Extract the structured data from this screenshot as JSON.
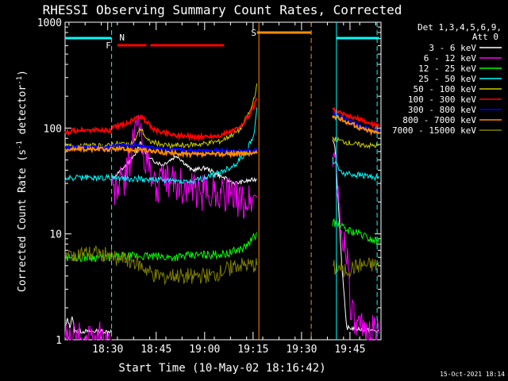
{
  "chart_data": {
    "type": "line",
    "title": "RHESSI Observing Summary Count Rates, Corrected",
    "xlabel": "Start Time (10-May-02 18:16:42)",
    "ylabel": "Corrected Count Rate (s",
    "ylabel_sup1": "-1",
    "ylabel_mid": " detector",
    "ylabel_sup2": "-1",
    "ylabel_end": ")",
    "yscale": "log",
    "ylim": [
      1,
      1000
    ],
    "xlim_minutes": [
      18.28,
      19.91
    ],
    "x_ticks": [
      "18:30",
      "18:45",
      "19:00",
      "19:15",
      "19:30",
      "19:45"
    ],
    "y_ticks": [
      "1",
      "10",
      "100",
      "1000"
    ],
    "legend_header": [
      "Det 1,3,4,5,6,9,",
      "Att 0"
    ],
    "legend_position": "right",
    "footer_date": "15-Oct-2021 18:14",
    "series": [
      {
        "name": "3 - 6 keV",
        "color": "#ffffff",
        "segA": [
          [
            0.0,
            1.2
          ],
          [
            0.05,
            1.6
          ],
          [
            0.1,
            1.3
          ],
          [
            0.15,
            1.7
          ],
          [
            0.2,
            1.2
          ]
        ],
        "segB": [
          [
            0.0,
            32
          ],
          [
            0.08,
            42
          ],
          [
            0.16,
            55
          ],
          [
            0.2,
            75
          ],
          [
            0.25,
            52
          ],
          [
            0.35,
            45
          ],
          [
            0.45,
            55
          ],
          [
            0.55,
            40
          ],
          [
            0.65,
            42
          ],
          [
            0.75,
            35
          ],
          [
            0.85,
            30
          ],
          [
            1.0,
            33
          ]
        ],
        "segC": [
          [
            0.0,
            80
          ],
          [
            0.05,
            70
          ],
          [
            0.1,
            30
          ],
          [
            0.2,
            5
          ],
          [
            0.3,
            1.3
          ],
          [
            1.0,
            1.2
          ]
        ]
      },
      {
        "name": "6 - 12 keV",
        "color": "#ff00ff",
        "segA": [
          [
            0.0,
            1.0
          ],
          [
            0.2,
            1.0
          ]
        ],
        "segB": [
          [
            0.0,
            25
          ],
          [
            0.1,
            35
          ],
          [
            0.18,
            120
          ],
          [
            0.22,
            60
          ],
          [
            0.3,
            28
          ],
          [
            0.4,
            32
          ],
          [
            0.5,
            28
          ],
          [
            0.6,
            24
          ],
          [
            0.7,
            26
          ],
          [
            0.8,
            24
          ],
          [
            0.9,
            20
          ],
          [
            1.0,
            22
          ]
        ],
        "segC": [
          [
            0.0,
            60
          ],
          [
            0.06,
            50
          ],
          [
            0.12,
            20
          ],
          [
            0.2,
            9
          ],
          [
            0.3,
            8
          ],
          [
            0.4,
            2
          ],
          [
            0.5,
            1.2
          ],
          [
            1.0,
            1.2
          ]
        ]
      },
      {
        "name": "12 - 25 keV",
        "color": "#00ff00",
        "segA": [
          [
            0.0,
            6
          ],
          [
            0.2,
            6
          ]
        ],
        "segB": [
          [
            0.0,
            6
          ],
          [
            0.2,
            6.2
          ],
          [
            0.4,
            6
          ],
          [
            0.6,
            6.3
          ],
          [
            0.8,
            6.5
          ],
          [
            0.92,
            7.5
          ],
          [
            1.0,
            10
          ]
        ],
        "segC": [
          [
            0.0,
            13
          ],
          [
            0.3,
            11
          ],
          [
            0.6,
            10
          ],
          [
            0.8,
            9
          ],
          [
            1.0,
            8.5
          ]
        ]
      },
      {
        "name": "25 - 50 keV",
        "color": "#00ffff",
        "segA": [
          [
            0.0,
            33
          ],
          [
            0.2,
            34
          ]
        ],
        "segB": [
          [
            0.0,
            34
          ],
          [
            0.2,
            33
          ],
          [
            0.4,
            32
          ],
          [
            0.55,
            31
          ],
          [
            0.65,
            34
          ],
          [
            0.75,
            38
          ],
          [
            0.85,
            45
          ],
          [
            0.93,
            60
          ],
          [
            0.98,
            90
          ],
          [
            1.0,
            150
          ]
        ],
        "segC": [
          [
            0.0,
            50
          ],
          [
            0.2,
            38
          ],
          [
            0.5,
            36
          ],
          [
            0.8,
            35
          ],
          [
            1.0,
            34
          ]
        ]
      },
      {
        "name": "50 - 100 keV",
        "color": "#cccc00",
        "segA": [
          [
            0.0,
            67
          ],
          [
            0.2,
            68
          ]
        ],
        "segB": [
          [
            0.0,
            70
          ],
          [
            0.15,
            72
          ],
          [
            0.2,
            100
          ],
          [
            0.25,
            75
          ],
          [
            0.4,
            68
          ],
          [
            0.6,
            70
          ],
          [
            0.75,
            75
          ],
          [
            0.88,
            95
          ],
          [
            0.96,
            150
          ],
          [
            1.0,
            250
          ]
        ],
        "segC": [
          [
            0.0,
            80
          ],
          [
            0.2,
            75
          ],
          [
            0.5,
            70
          ],
          [
            0.8,
            68
          ],
          [
            1.0,
            68
          ]
        ]
      },
      {
        "name": "100 - 300 keV",
        "color": "#ff0000",
        "segA": [
          [
            0.0,
            90
          ],
          [
            0.2,
            95
          ]
        ],
        "segB": [
          [
            0.0,
            100
          ],
          [
            0.1,
            110
          ],
          [
            0.2,
            130
          ],
          [
            0.3,
            95
          ],
          [
            0.45,
            85
          ],
          [
            0.6,
            82
          ],
          [
            0.75,
            85
          ],
          [
            0.88,
            100
          ],
          [
            0.96,
            140
          ],
          [
            1.0,
            190
          ]
        ],
        "segC": [
          [
            0.0,
            150
          ],
          [
            0.3,
            130
          ],
          [
            0.6,
            120
          ],
          [
            0.8,
            110
          ],
          [
            1.0,
            105
          ]
        ]
      },
      {
        "name": "300 - 800 keV",
        "color": "#0000ff",
        "segA": [
          [
            0.0,
            65
          ],
          [
            0.2,
            66
          ]
        ],
        "segB": [
          [
            0.0,
            68
          ],
          [
            0.15,
            70
          ],
          [
            0.3,
            64
          ],
          [
            0.5,
            62
          ],
          [
            0.7,
            61
          ],
          [
            0.9,
            61
          ],
          [
            1.0,
            62
          ]
        ],
        "segC": [
          [
            0.0,
            140
          ],
          [
            0.3,
            120
          ],
          [
            0.6,
            105
          ],
          [
            0.8,
            98
          ],
          [
            1.0,
            95
          ]
        ]
      },
      {
        "name": "800 - 7000 keV",
        "color": "#ff8c00",
        "segA": [
          [
            0.0,
            63
          ],
          [
            0.2,
            63
          ]
        ],
        "segB": [
          [
            0.0,
            64
          ],
          [
            0.2,
            62
          ],
          [
            0.4,
            58
          ],
          [
            0.6,
            56
          ],
          [
            0.8,
            57
          ],
          [
            1.0,
            58
          ]
        ],
        "segC": [
          [
            0.0,
            130
          ],
          [
            0.3,
            115
          ],
          [
            0.6,
            100
          ],
          [
            0.8,
            94
          ],
          [
            1.0,
            90
          ]
        ]
      },
      {
        "name": "7000 - 15000 keV",
        "color": "#808000",
        "segA": [
          [
            0.0,
            6
          ],
          [
            0.2,
            6.5
          ]
        ],
        "segB": [
          [
            0.0,
            6
          ],
          [
            0.15,
            5.5
          ],
          [
            0.3,
            4
          ],
          [
            0.5,
            4
          ],
          [
            0.7,
            4
          ],
          [
            0.85,
            5
          ],
          [
            1.0,
            5
          ]
        ],
        "segC": [
          [
            0.0,
            5
          ],
          [
            0.3,
            4.5
          ],
          [
            0.6,
            5
          ],
          [
            0.8,
            5
          ],
          [
            1.0,
            5
          ]
        ]
      }
    ],
    "annotations": {
      "N": {
        "label": "N",
        "color": "#00ffff"
      },
      "F": {
        "label": "F",
        "color": "#ff0000"
      },
      "S": {
        "label": "S",
        "color": "#ff8c00"
      }
    }
  }
}
